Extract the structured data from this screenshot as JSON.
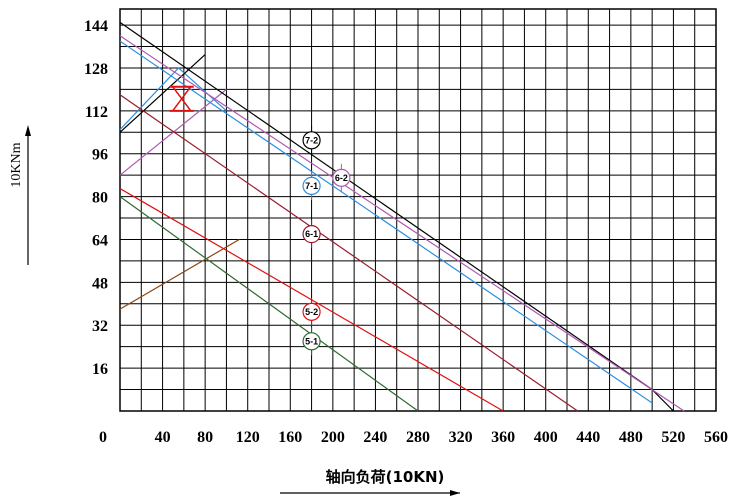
{
  "chart_data": {
    "type": "line",
    "title": "",
    "xlabel": "轴向负荷(10KN)",
    "ylabel": "10KNm",
    "xlim": [
      0,
      560
    ],
    "ylim": [
      0,
      150
    ],
    "grid": true,
    "x_ticks": [
      "0",
      "40",
      "80",
      "120",
      "160",
      "200",
      "240",
      "280",
      "320",
      "360",
      "400",
      "440",
      "480",
      "520",
      "560"
    ],
    "y_ticks": [
      "16",
      "32",
      "48",
      "64",
      "80",
      "96",
      "112",
      "128",
      "144"
    ],
    "series": [
      {
        "name": "7-2",
        "color": "#000000",
        "points": [
          [
            0,
            145
          ],
          [
            500,
            8
          ],
          [
            520,
            0
          ]
        ]
      },
      {
        "name": "6-2",
        "color": "#b05ab0",
        "points": [
          [
            0,
            140
          ],
          [
            530,
            0
          ]
        ]
      },
      {
        "name": "7-1",
        "color": "#2b8fe0",
        "points": [
          [
            0,
            138
          ],
          [
            500,
            3
          ]
        ]
      },
      {
        "name": "6-1",
        "color": "#9a1c2c",
        "points": [
          [
            0,
            118
          ],
          [
            430,
            0
          ]
        ]
      },
      {
        "name": "5-2",
        "color": "#e01010",
        "points": [
          [
            0,
            83
          ],
          [
            360,
            0
          ]
        ]
      },
      {
        "name": "5-1",
        "color": "#2e6b2e",
        "points": [
          [
            0,
            80
          ],
          [
            280,
            0
          ]
        ]
      }
    ],
    "auxiliary_lines": [
      {
        "color": "#2b8fe0",
        "points": [
          [
            0,
            105
          ],
          [
            55,
            128
          ],
          [
            100,
            112
          ]
        ]
      },
      {
        "color": "#b05ab0",
        "points": [
          [
            0,
            88
          ],
          [
            100,
            120
          ]
        ]
      },
      {
        "color": "#000000",
        "points": [
          [
            0,
            104
          ],
          [
            80,
            133
          ]
        ]
      },
      {
        "color": "#8b4513",
        "points": [
          [
            0,
            38
          ],
          [
            112,
            64
          ]
        ]
      }
    ],
    "marker": {
      "color": "#e01010",
      "x": 58,
      "y_top": 121,
      "y_bottom": 112
    },
    "curve_labels": [
      {
        "text": "7-2",
        "color": "#000000",
        "x": 180,
        "y": 101
      },
      {
        "text": "6-2",
        "color": "#b05ab0",
        "x": 208,
        "y": 87
      },
      {
        "text": "7-1",
        "color": "#2b8fe0",
        "x": 180,
        "y": 84
      },
      {
        "text": "6-1",
        "color": "#9a1c2c",
        "x": 180,
        "y": 66
      },
      {
        "text": "5-2",
        "color": "#e01010",
        "x": 180,
        "y": 37
      },
      {
        "text": "5-1",
        "color": "#2e6b2e",
        "x": 180,
        "y": 26
      }
    ]
  }
}
